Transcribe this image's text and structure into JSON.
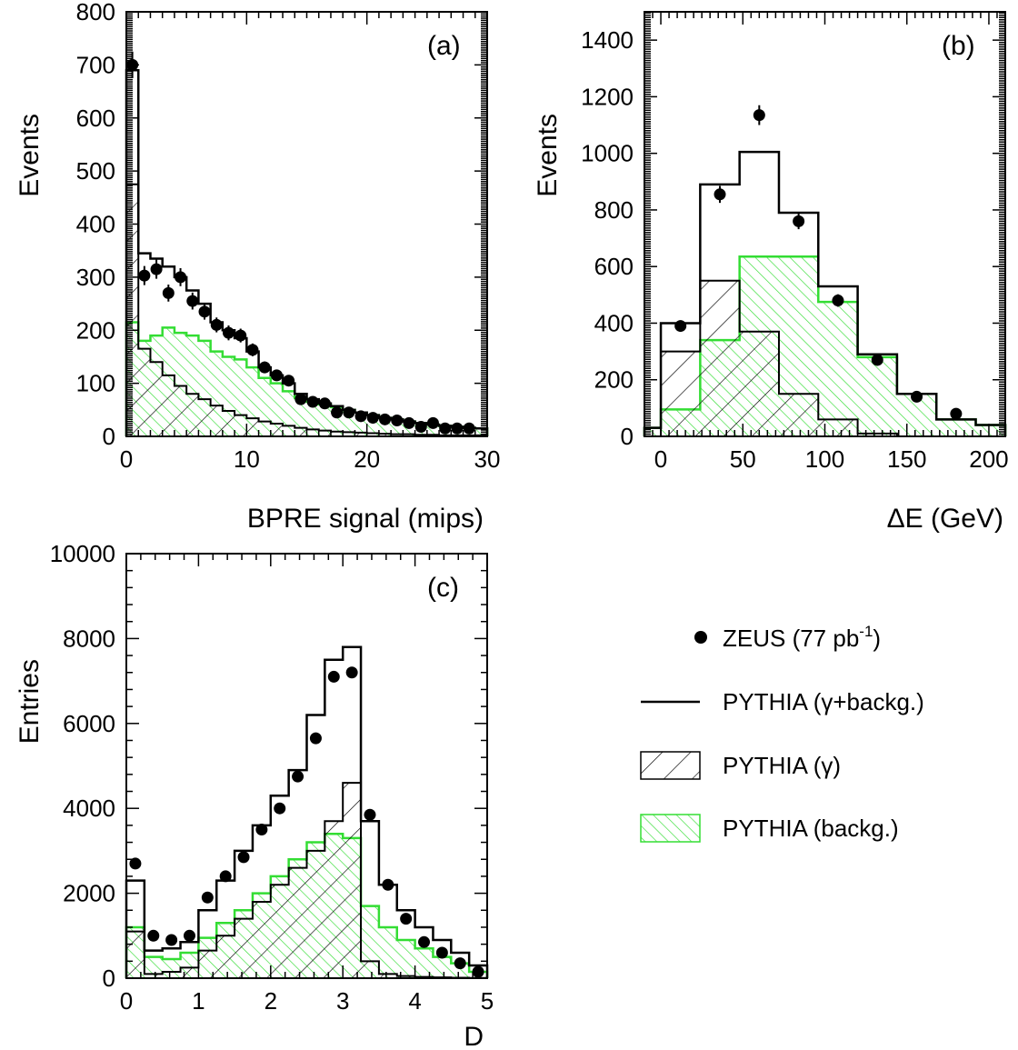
{
  "colors": {
    "data": "#000000",
    "total": "#000000",
    "signal": "#000000",
    "background": "#33dd33"
  },
  "legend": {
    "zeus_label": "ZEUS (77 pb",
    "zeus_sup": "-1",
    "zeus_close": ")",
    "total_label": "PYTHIA (γ+backg.)",
    "signal_label": "PYTHIA (γ)",
    "background_label": "PYTHIA (backg.)"
  },
  "chart_data": [
    {
      "type": "histogram",
      "panel": "(a)",
      "xlabel": "BPRE signal (mips)",
      "ylabel": "Events",
      "xlim": [
        0,
        30
      ],
      "ylim": [
        0,
        800
      ],
      "xticks": [
        0,
        10,
        20,
        30
      ],
      "yticks": [
        0,
        100,
        200,
        300,
        400,
        500,
        600,
        700,
        800
      ],
      "bin_edges": [
        0,
        1,
        2,
        3,
        4,
        5,
        6,
        7,
        8,
        9,
        10,
        11,
        12,
        13,
        14,
        15,
        16,
        17,
        18,
        19,
        20,
        21,
        22,
        23,
        24,
        25,
        26,
        27,
        28,
        29,
        30
      ],
      "series": [
        {
          "name": "PYTHIA (γ+backg.)",
          "values": [
            690,
            345,
            335,
            320,
            300,
            275,
            250,
            215,
            200,
            185,
            160,
            130,
            115,
            100,
            80,
            70,
            62,
            57,
            50,
            45,
            40,
            35,
            32,
            28,
            25,
            22,
            20,
            18,
            16,
            15
          ]
        },
        {
          "name": "PYTHIA (γ)",
          "values": [
            475,
            165,
            140,
            115,
            95,
            80,
            70,
            58,
            48,
            40,
            34,
            28,
            24,
            20,
            16,
            13,
            11,
            9,
            8,
            7,
            6,
            5,
            4,
            4,
            3,
            3,
            2,
            2,
            2,
            2
          ]
        },
        {
          "name": "PYTHIA (backg.)",
          "values": [
            215,
            180,
            190,
            205,
            195,
            190,
            180,
            160,
            150,
            145,
            130,
            110,
            100,
            85,
            72,
            65,
            60,
            55,
            50,
            45,
            40,
            35,
            32,
            28,
            25,
            22,
            20,
            18,
            16,
            15
          ]
        }
      ],
      "points": {
        "name": "ZEUS (77 pb-1)",
        "x": [
          0.5,
          1.5,
          2.5,
          3.5,
          4.5,
          5.5,
          6.5,
          7.5,
          8.5,
          9.5,
          10.5,
          11.5,
          12.5,
          13.5,
          14.5,
          15.5,
          16.5,
          17.5,
          18.5,
          19.5,
          20.5,
          21.5,
          22.5,
          23.5,
          24.5,
          25.5,
          26.5,
          27.5,
          28.5
        ],
        "y": [
          700,
          303,
          315,
          270,
          300,
          255,
          235,
          210,
          195,
          190,
          163,
          130,
          115,
          105,
          70,
          65,
          62,
          45,
          45,
          38,
          35,
          32,
          30,
          25,
          18,
          25,
          15,
          15,
          15
        ],
        "err": [
          25,
          18,
          18,
          16,
          17,
          16,
          15,
          14,
          14,
          13,
          12,
          11,
          10,
          10,
          8,
          8,
          8,
          7,
          7,
          6,
          6,
          6,
          5,
          5,
          4,
          5,
          4,
          4,
          4
        ]
      }
    },
    {
      "type": "histogram",
      "panel": "(b)",
      "xlabel": "ΔE (GeV)",
      "ylabel": "Events",
      "xlim": [
        -10,
        210
      ],
      "ylim": [
        0,
        1500
      ],
      "xticks": [
        0,
        50,
        100,
        150,
        200
      ],
      "yticks": [
        0,
        200,
        400,
        600,
        800,
        1000,
        1200,
        1400
      ],
      "bin_edges": [
        -12,
        0,
        24,
        48,
        72,
        96,
        120,
        144,
        168,
        192,
        216
      ],
      "series": [
        {
          "name": "PYTHIA (γ+backg.)",
          "values": [
            30,
            400,
            890,
            1005,
            790,
            530,
            290,
            150,
            60,
            40
          ]
        },
        {
          "name": "PYTHIA (γ)",
          "values": [
            0,
            300,
            550,
            370,
            150,
            60,
            10,
            0,
            0,
            0
          ]
        },
        {
          "name": "PYTHIA (backg.)",
          "values": [
            30,
            95,
            340,
            635,
            635,
            475,
            280,
            150,
            60,
            40
          ]
        }
      ],
      "points": {
        "name": "ZEUS (77 pb-1)",
        "x": [
          12,
          36,
          60,
          84,
          108,
          132,
          156,
          180
        ],
        "y": [
          390,
          855,
          1135,
          760,
          480,
          270,
          140,
          80
        ],
        "err": [
          20,
          30,
          35,
          28,
          22,
          16,
          12,
          9
        ]
      }
    },
    {
      "type": "histogram",
      "panel": "(c)",
      "xlabel": "D",
      "ylabel": "Entries",
      "xlim": [
        0,
        5
      ],
      "ylim": [
        0,
        10000
      ],
      "xticks": [
        0,
        1,
        2,
        3,
        4,
        5
      ],
      "yticks": [
        0,
        2000,
        4000,
        6000,
        8000,
        10000
      ],
      "bin_edges": [
        0,
        0.25,
        0.5,
        0.75,
        1,
        1.25,
        1.5,
        1.75,
        2,
        2.25,
        2.5,
        2.75,
        3,
        3.25,
        3.5,
        3.75,
        4,
        4.25,
        4.5,
        4.75,
        5
      ],
      "series": [
        {
          "name": "PYTHIA (γ+backg.)",
          "values": [
            2300,
            650,
            700,
            850,
            1600,
            2300,
            3000,
            3600,
            4300,
            4900,
            6200,
            7500,
            7800,
            3700,
            2200,
            1600,
            1200,
            900,
            600,
            300
          ]
        },
        {
          "name": "PYTHIA (γ)",
          "values": [
            1100,
            100,
            150,
            250,
            650,
            1000,
            1400,
            1800,
            2200,
            2600,
            3000,
            3700,
            4600,
            400,
            100,
            50,
            30,
            20,
            10,
            5
          ]
        },
        {
          "name": "PYTHIA (backg.)",
          "values": [
            1200,
            500,
            450,
            600,
            950,
            1300,
            1600,
            2000,
            2400,
            2800,
            3200,
            3400,
            3300,
            1700,
            1200,
            900,
            700,
            500,
            350,
            150
          ]
        }
      ],
      "points": {
        "name": "ZEUS (77 pb-1)",
        "x": [
          0.125,
          0.375,
          0.625,
          0.875,
          1.125,
          1.375,
          1.625,
          1.875,
          2.125,
          2.375,
          2.625,
          2.875,
          3.125,
          3.375,
          3.625,
          3.875,
          4.125,
          4.375,
          4.625,
          4.875
        ],
        "y": [
          2700,
          1000,
          900,
          1000,
          1900,
          2400,
          2850,
          3500,
          4000,
          4750,
          5650,
          7100,
          7200,
          3850,
          2200,
          1400,
          850,
          600,
          350,
          150
        ]
      }
    }
  ]
}
